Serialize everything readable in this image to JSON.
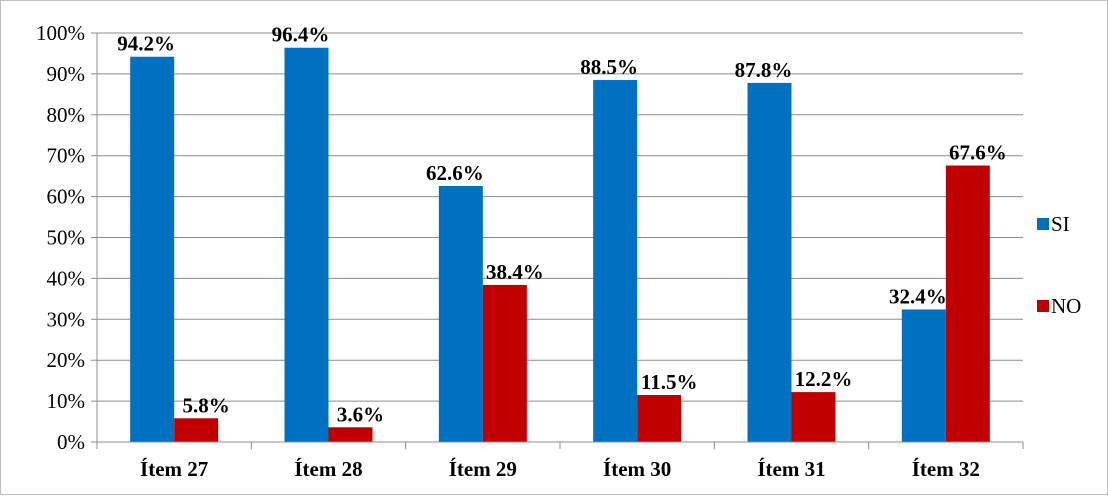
{
  "chart_data": {
    "type": "bar",
    "title": "",
    "xlabel": "",
    "ylabel": "",
    "ylim": [
      0,
      100
    ],
    "ytick_step": 10,
    "y_format": "percent",
    "grid": true,
    "legend_position": "right",
    "categories": [
      "Ítem 27",
      "Ítem 28",
      "Ítem 29",
      "Ítem 30",
      "Ítem 31",
      "Ítem 32"
    ],
    "series": [
      {
        "name": "SI",
        "color": "#0070c0",
        "values": [
          94.2,
          96.4,
          62.6,
          88.5,
          87.8,
          32.4
        ],
        "labels": [
          "94.2%",
          "96.4%",
          "62.6%",
          "88.5%",
          "87.8%",
          "32.4%"
        ]
      },
      {
        "name": "NO",
        "color": "#c00000",
        "values": [
          5.8,
          3.6,
          38.4,
          11.5,
          12.2,
          67.6
        ],
        "labels": [
          "5.8%",
          "3.6%",
          "38.4%",
          "11.5%",
          "12.2%",
          "67.6%"
        ]
      }
    ],
    "y_tick_labels": [
      "0%",
      "10%",
      "20%",
      "30%",
      "40%",
      "50%",
      "60%",
      "70%",
      "80%",
      "90%",
      "100%"
    ]
  }
}
